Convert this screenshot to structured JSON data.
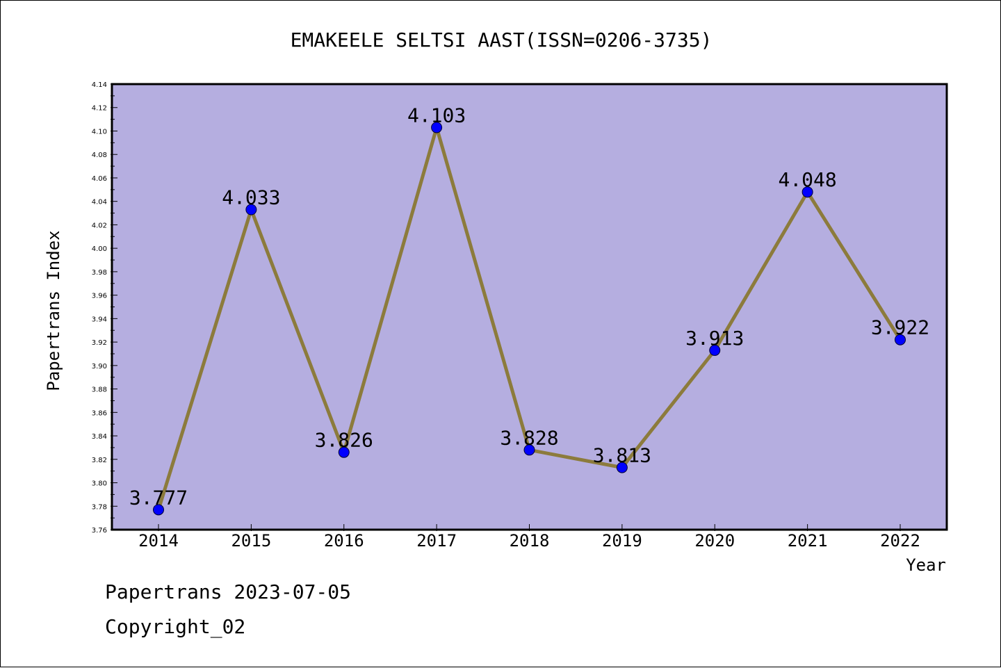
{
  "colors": {
    "plot_background": "#b5aee0",
    "line": "#8c7b3c",
    "marker": "#0000ff",
    "axis": "#000000"
  },
  "chart_data": {
    "type": "line",
    "title": "EMAKEELE SELTSI AAST(ISSN=0206-3735)",
    "xlabel": "Year",
    "ylabel": "Papertrans Index",
    "ylim": [
      3.76,
      4.14
    ],
    "y_ticks": [
      "3.76",
      "3.78",
      "3.80",
      "3.82",
      "3.84",
      "3.86",
      "3.88",
      "3.90",
      "3.92",
      "3.94",
      "3.96",
      "3.98",
      "4.00",
      "4.02",
      "4.04",
      "4.06",
      "4.08",
      "4.10",
      "4.12",
      "4.14"
    ],
    "categories": [
      "2014",
      "2015",
      "2016",
      "2017",
      "2018",
      "2019",
      "2020",
      "2021",
      "2022"
    ],
    "series": [
      {
        "values": [
          3.777,
          4.033,
          3.826,
          4.103,
          3.828,
          3.813,
          3.913,
          4.048,
          3.922
        ],
        "labels": [
          "3.777",
          "4.033",
          "3.826",
          "4.103",
          "3.828",
          "3.813",
          "3.913",
          "4.048",
          "3.922"
        ]
      }
    ],
    "grid": false,
    "legend": "none"
  },
  "footer": {
    "line1": "Papertrans 2023-07-05",
    "line2": "Copyright_02"
  }
}
